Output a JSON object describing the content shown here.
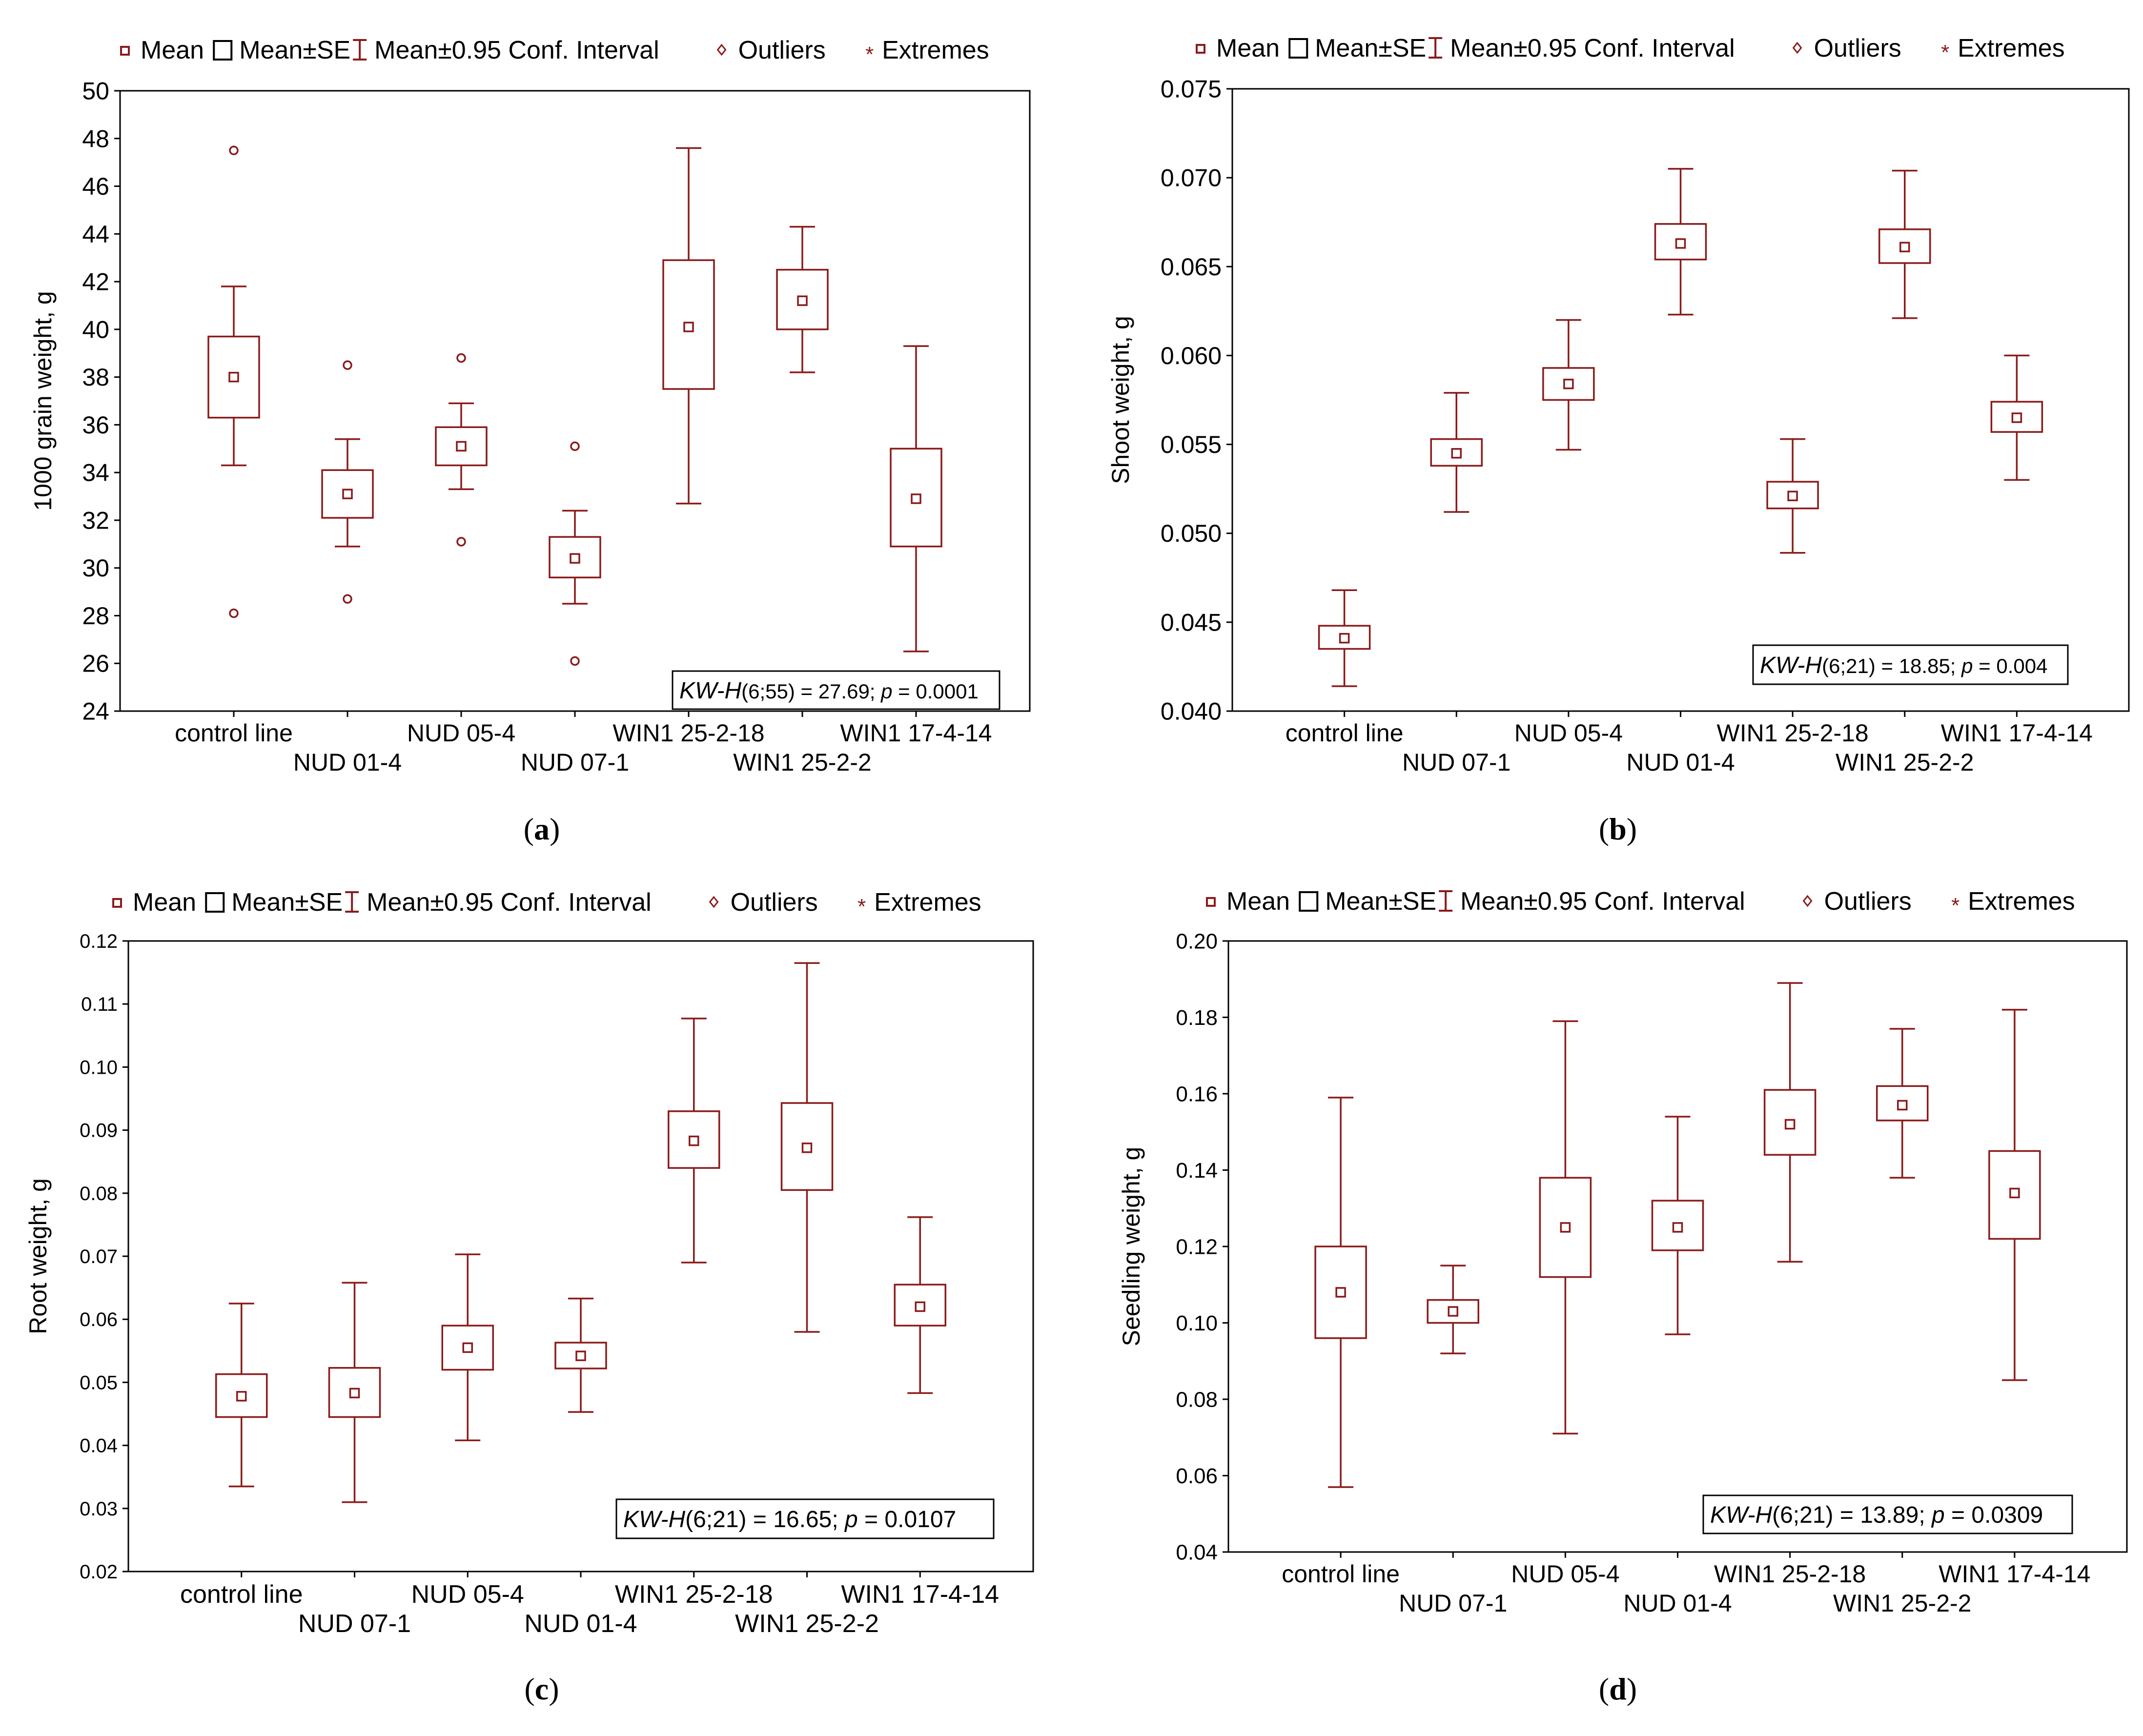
{
  "colors": {
    "plot": "#8b1a1a",
    "axis": "#000000",
    "background": "#ffffff"
  },
  "legend": {
    "mean": "Mean",
    "se": "Mean±SE",
    "ci": "Mean±0.95 Conf. Interval",
    "outliers": "Outliers",
    "extremes": "Extremes"
  },
  "chart_data": [
    {
      "type": "box",
      "panel": "(a)",
      "panel_letter": "a",
      "ylabel": "1000 grain weight, g",
      "ylim": [
        24,
        50
      ],
      "yticks": [
        "24",
        "26",
        "28",
        "30",
        "32",
        "34",
        "36",
        "38",
        "40",
        "42",
        "44",
        "46",
        "48",
        "50"
      ],
      "categories": [
        "control line",
        "NUD 01-4",
        "NUD 05-4",
        "NUD 07-1",
        "WIN1 25-2-18",
        "WIN1 25-2-2",
        "WIN1 17-4-14"
      ],
      "series": [
        {
          "name": "control line",
          "mean": 38.0,
          "se": [
            36.3,
            39.7
          ],
          "ci": [
            34.3,
            41.8
          ],
          "outliers": [
            47.5,
            28.1
          ]
        },
        {
          "name": "NUD 01-4",
          "mean": 33.1,
          "se": [
            32.1,
            34.1
          ],
          "ci": [
            30.9,
            35.4
          ],
          "outliers": [
            38.5,
            28.7
          ]
        },
        {
          "name": "NUD 05-4",
          "mean": 35.1,
          "se": [
            34.3,
            35.9
          ],
          "ci": [
            33.3,
            36.9
          ],
          "outliers": [
            38.8,
            31.1
          ]
        },
        {
          "name": "NUD 07-1",
          "mean": 30.4,
          "se": [
            29.6,
            31.3
          ],
          "ci": [
            28.5,
            32.4
          ],
          "outliers": [
            35.1,
            26.1
          ]
        },
        {
          "name": "WIN1 25-2-18",
          "mean": 40.1,
          "se": [
            37.5,
            42.9
          ],
          "ci": [
            32.7,
            47.6
          ],
          "outliers": []
        },
        {
          "name": "WIN1 25-2-2",
          "mean": 41.2,
          "se": [
            40.0,
            42.5
          ],
          "ci": [
            38.2,
            44.3
          ],
          "outliers": []
        },
        {
          "name": "WIN1 17-4-14",
          "mean": 32.9,
          "se": [
            30.9,
            35.0
          ],
          "ci": [
            26.5,
            39.3
          ],
          "outliers": []
        }
      ],
      "annotation": {
        "stat": "KW-H",
        "df": "(6;55)",
        "rest": " = 27.69; ",
        "p_label": "p",
        "p_value": " = 0.0001"
      }
    },
    {
      "type": "box",
      "panel": "(b)",
      "panel_letter": "b",
      "ylabel": "Shoot weight, g",
      "ylim": [
        0.04,
        0.075
      ],
      "yticks": [
        "0.040",
        "0.045",
        "0.050",
        "0.055",
        "0.060",
        "0.065",
        "0.070",
        "0.075"
      ],
      "categories": [
        "control line",
        "NUD 07-1",
        "NUD 05-4",
        "NUD 01-4",
        "WIN1 25-2-18",
        "WIN1 25-2-2",
        "WIN1 17-4-14"
      ],
      "series": [
        {
          "name": "control line",
          "mean": 0.0441,
          "se": [
            0.0435,
            0.0448
          ],
          "ci": [
            0.0414,
            0.0468
          ],
          "outliers": []
        },
        {
          "name": "NUD 07-1",
          "mean": 0.0545,
          "se": [
            0.0538,
            0.0553
          ],
          "ci": [
            0.0512,
            0.0579
          ],
          "outliers": []
        },
        {
          "name": "NUD 05-4",
          "mean": 0.0584,
          "se": [
            0.0575,
            0.0593
          ],
          "ci": [
            0.0547,
            0.062
          ],
          "outliers": []
        },
        {
          "name": "NUD 01-4",
          "mean": 0.0663,
          "se": [
            0.0654,
            0.0674
          ],
          "ci": [
            0.0623,
            0.0705
          ],
          "outliers": []
        },
        {
          "name": "WIN1 25-2-18",
          "mean": 0.0521,
          "se": [
            0.0514,
            0.0529
          ],
          "ci": [
            0.0489,
            0.0553
          ],
          "outliers": []
        },
        {
          "name": "WIN1 25-2-2",
          "mean": 0.0661,
          "se": [
            0.0652,
            0.0671
          ],
          "ci": [
            0.0621,
            0.0704
          ],
          "outliers": []
        },
        {
          "name": "WIN1 17-4-14",
          "mean": 0.0565,
          "se": [
            0.0557,
            0.0574
          ],
          "ci": [
            0.053,
            0.06
          ],
          "outliers": []
        }
      ],
      "annotation": {
        "stat": "KW-H",
        "df": "(6;21)",
        "rest": " = 18.85; ",
        "p_label": "p",
        "p_value": " = 0.004"
      }
    },
    {
      "type": "box",
      "panel": "(c)",
      "panel_letter": "c",
      "ylabel": "Root weight, g",
      "ylim": [
        0.02,
        0.12
      ],
      "yticks": [
        "0.02",
        "0.03",
        "0.04",
        "0.05",
        "0.06",
        "0.07",
        "0.08",
        "0.09",
        "0.10",
        "0.11",
        "0.12"
      ],
      "categories": [
        "control line",
        "NUD 07-1",
        "NUD 05-4",
        "NUD 01-4",
        "WIN1 25-2-18",
        "WIN1 25-2-2",
        "WIN1 17-4-14"
      ],
      "series": [
        {
          "name": "control line",
          "mean": 0.0478,
          "se": [
            0.0445,
            0.0513
          ],
          "ci": [
            0.0335,
            0.0625
          ],
          "outliers": []
        },
        {
          "name": "NUD 07-1",
          "mean": 0.0483,
          "se": [
            0.0445,
            0.0523
          ],
          "ci": [
            0.031,
            0.0658
          ],
          "outliers": []
        },
        {
          "name": "NUD 05-4",
          "mean": 0.0555,
          "se": [
            0.052,
            0.059
          ],
          "ci": [
            0.0408,
            0.0703
          ],
          "outliers": []
        },
        {
          "name": "NUD 01-4",
          "mean": 0.0542,
          "se": [
            0.0522,
            0.0563
          ],
          "ci": [
            0.0453,
            0.0633
          ],
          "outliers": []
        },
        {
          "name": "WIN1 25-2-18",
          "mean": 0.0883,
          "se": [
            0.084,
            0.093
          ],
          "ci": [
            0.069,
            0.1077
          ],
          "outliers": []
        },
        {
          "name": "WIN1 25-2-2",
          "mean": 0.0872,
          "se": [
            0.0805,
            0.0943
          ],
          "ci": [
            0.058,
            0.1165
          ],
          "outliers": []
        },
        {
          "name": "WIN1 17-4-14",
          "mean": 0.062,
          "se": [
            0.059,
            0.0655
          ],
          "ci": [
            0.0483,
            0.0762
          ],
          "outliers": []
        }
      ],
      "annotation": {
        "stat": "KW-H",
        "df": "(6;21)",
        "rest": " = 16.65; ",
        "p_label": "p",
        "p_value": " = 0.0107"
      }
    },
    {
      "type": "box",
      "panel": "(d)",
      "panel_letter": "d",
      "ylabel": "Seedling weight, g",
      "ylim": [
        0.04,
        0.2
      ],
      "yticks": [
        "0.04",
        "0.06",
        "0.08",
        "0.10",
        "0.12",
        "0.14",
        "0.16",
        "0.18",
        "0.20"
      ],
      "categories": [
        "control line",
        "NUD 07-1",
        "NUD 05-4",
        "NUD 01-4",
        "WIN1 25-2-18",
        "WIN1 25-2-2",
        "WIN1 17-4-14"
      ],
      "series": [
        {
          "name": "control line",
          "mean": 0.108,
          "se": [
            0.096,
            0.12
          ],
          "ci": [
            0.057,
            0.159
          ],
          "outliers": []
        },
        {
          "name": "NUD 07-1",
          "mean": 0.103,
          "se": [
            0.1,
            0.106
          ],
          "ci": [
            0.092,
            0.115
          ],
          "outliers": []
        },
        {
          "name": "NUD 05-4",
          "mean": 0.125,
          "se": [
            0.112,
            0.138
          ],
          "ci": [
            0.071,
            0.179
          ],
          "outliers": []
        },
        {
          "name": "NUD 01-4",
          "mean": 0.125,
          "se": [
            0.119,
            0.132
          ],
          "ci": [
            0.097,
            0.154
          ],
          "outliers": []
        },
        {
          "name": "WIN1 25-2-18",
          "mean": 0.152,
          "se": [
            0.144,
            0.161
          ],
          "ci": [
            0.116,
            0.189
          ],
          "outliers": []
        },
        {
          "name": "WIN1 25-2-2",
          "mean": 0.157,
          "se": [
            0.153,
            0.162
          ],
          "ci": [
            0.138,
            0.177
          ],
          "outliers": []
        },
        {
          "name": "WIN1 17-4-14",
          "mean": 0.134,
          "se": [
            0.122,
            0.145
          ],
          "ci": [
            0.085,
            0.182
          ],
          "outliers": []
        }
      ],
      "annotation": {
        "stat": "KW-H",
        "df": "(6;21)",
        "rest": " = 13.89; ",
        "p_label": "p",
        "p_value": " = 0.0309"
      }
    }
  ]
}
